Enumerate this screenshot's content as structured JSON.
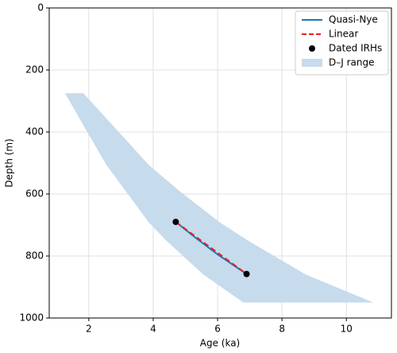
{
  "chart_data": {
    "type": "line",
    "x_label": "Age (ka)",
    "y_label": "Depth (m)",
    "xlim": [
      0.77,
      11.4
    ],
    "ylim": [
      1000,
      0
    ],
    "xticks": [
      2,
      4,
      6,
      8,
      10
    ],
    "yticks": [
      0,
      200,
      400,
      600,
      800,
      1000
    ],
    "grid": true,
    "legend": "upper right",
    "series": [
      {
        "name": "Quasi-Nye",
        "type": "line",
        "style": "solid",
        "color": "#1f77b4",
        "x": [
          4.7,
          5.3,
          6.0,
          6.9
        ],
        "values": [
          690,
          740,
          795,
          858
        ]
      },
      {
        "name": "Linear",
        "type": "line",
        "style": "dashed",
        "color": "#e32222",
        "x": [
          4.7,
          6.9
        ],
        "values": [
          690,
          858
        ]
      },
      {
        "name": "Dated IRHs",
        "type": "scatter",
        "color": "#000000",
        "x": [
          4.7,
          6.9
        ],
        "values": [
          690,
          858
        ]
      },
      {
        "name": "D–J range",
        "type": "band",
        "color": "#c6dbec",
        "values": [
          275,
          400,
          505,
          590,
          690,
          750,
          860,
          950
        ],
        "x_low": [
          1.26,
          1.95,
          2.54,
          3.14,
          3.85,
          4.4,
          5.56,
          6.8
        ],
        "x_high": [
          1.83,
          2.93,
          3.85,
          4.81,
          6.05,
          6.94,
          8.74,
          10.84
        ]
      }
    ]
  }
}
